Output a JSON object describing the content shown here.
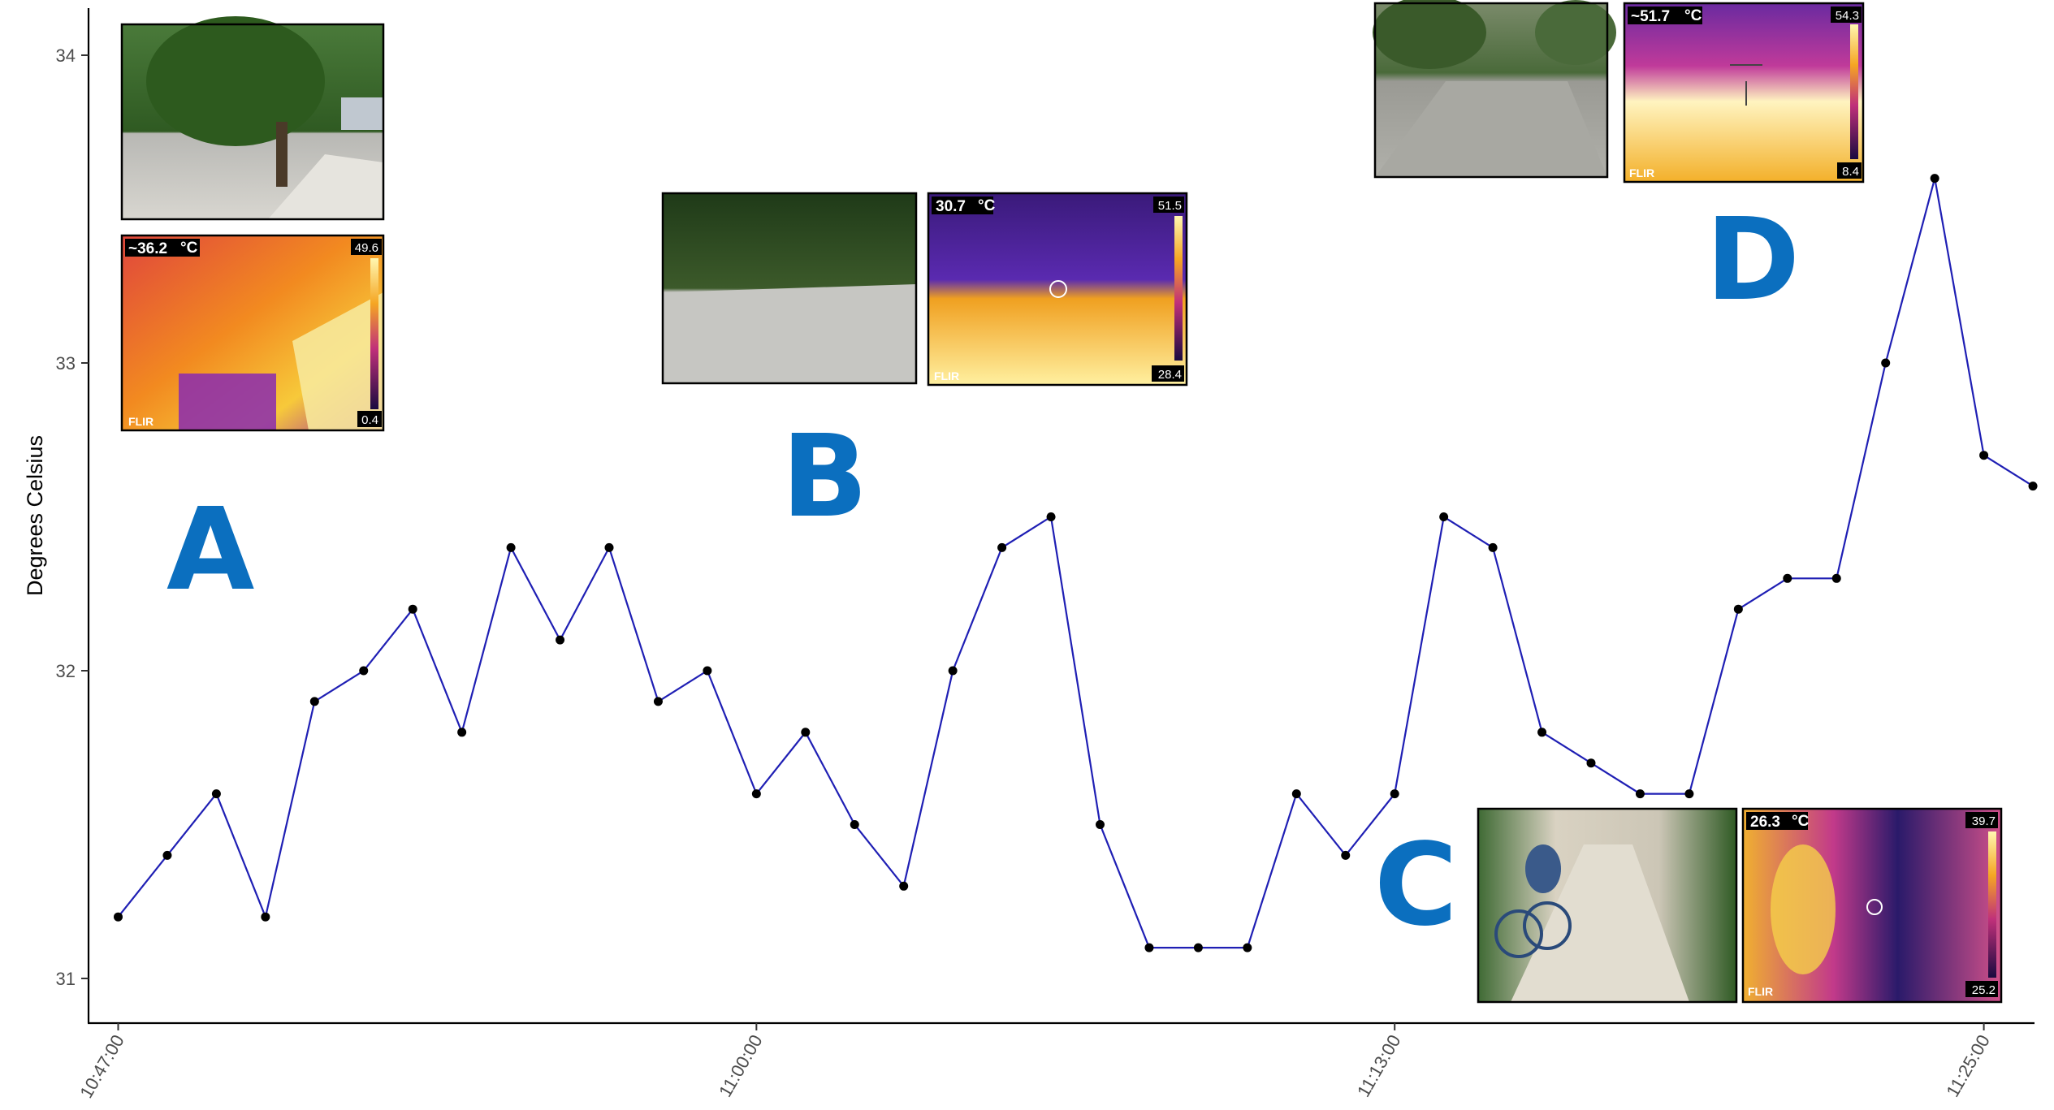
{
  "chart_data": {
    "type": "line",
    "title": "",
    "xlabel": "",
    "ylabel": "Degrees Celsius",
    "ylim": [
      30.85,
      34.15
    ],
    "y_ticks": [
      "31",
      "32",
      "33",
      "34"
    ],
    "x_tick_labels": [
      "10:47:00",
      "11:00:00",
      "11:13:00",
      "11:25:00"
    ],
    "x_ticks_index": [
      0,
      13,
      26,
      38
    ],
    "series": [
      {
        "color": "#1f1fb4",
        "x": [
          "10:47:00",
          "10:48:00",
          "10:49:00",
          "10:50:00",
          "10:51:00",
          "10:52:00",
          "10:53:00",
          "10:54:00",
          "10:55:00",
          "10:56:00",
          "10:57:00",
          "10:58:00",
          "10:59:00",
          "11:00:00",
          "11:01:00",
          "11:02:00",
          "11:03:00",
          "11:04:00",
          "11:05:00",
          "11:06:00",
          "11:07:00",
          "11:08:00",
          "11:09:00",
          "11:10:00",
          "11:11:00",
          "11:12:00",
          "11:13:00",
          "11:14:00",
          "11:15:00",
          "11:16:00",
          "11:17:00",
          "11:18:00",
          "11:19:00",
          "11:20:00",
          "11:21:00",
          "11:22:00",
          "11:23:00",
          "11:24:00",
          "11:25:00",
          "11:26:00"
        ],
        "values": [
          31.2,
          31.4,
          31.6,
          31.2,
          31.9,
          32.0,
          32.2,
          31.8,
          32.4,
          32.1,
          32.4,
          31.9,
          32.0,
          31.6,
          31.8,
          31.5,
          31.3,
          32.0,
          32.4,
          32.5,
          31.5,
          31.1,
          31.1,
          31.1,
          31.6,
          31.4,
          31.6,
          32.5,
          32.4,
          31.8,
          31.7,
          31.6,
          31.6,
          32.2,
          32.3,
          32.3,
          33.0,
          33.6,
          32.7,
          32.6
        ]
      }
    ],
    "grid": false,
    "annotations": [
      {
        "label": "A",
        "temp": "~36.2",
        "scale_max": "49.6",
        "scale_min": "0.4"
      },
      {
        "label": "B",
        "temp": "30.7",
        "scale_max": "51.5",
        "scale_min": "28.4"
      },
      {
        "label": "C",
        "temp": "26.3",
        "scale_max": "39.7",
        "scale_min": "25.2"
      },
      {
        "label": "D",
        "temp": "~51.7",
        "scale_max": "54.3",
        "scale_min": "8.4"
      }
    ],
    "unit": "°C",
    "logo": "FLIR"
  }
}
